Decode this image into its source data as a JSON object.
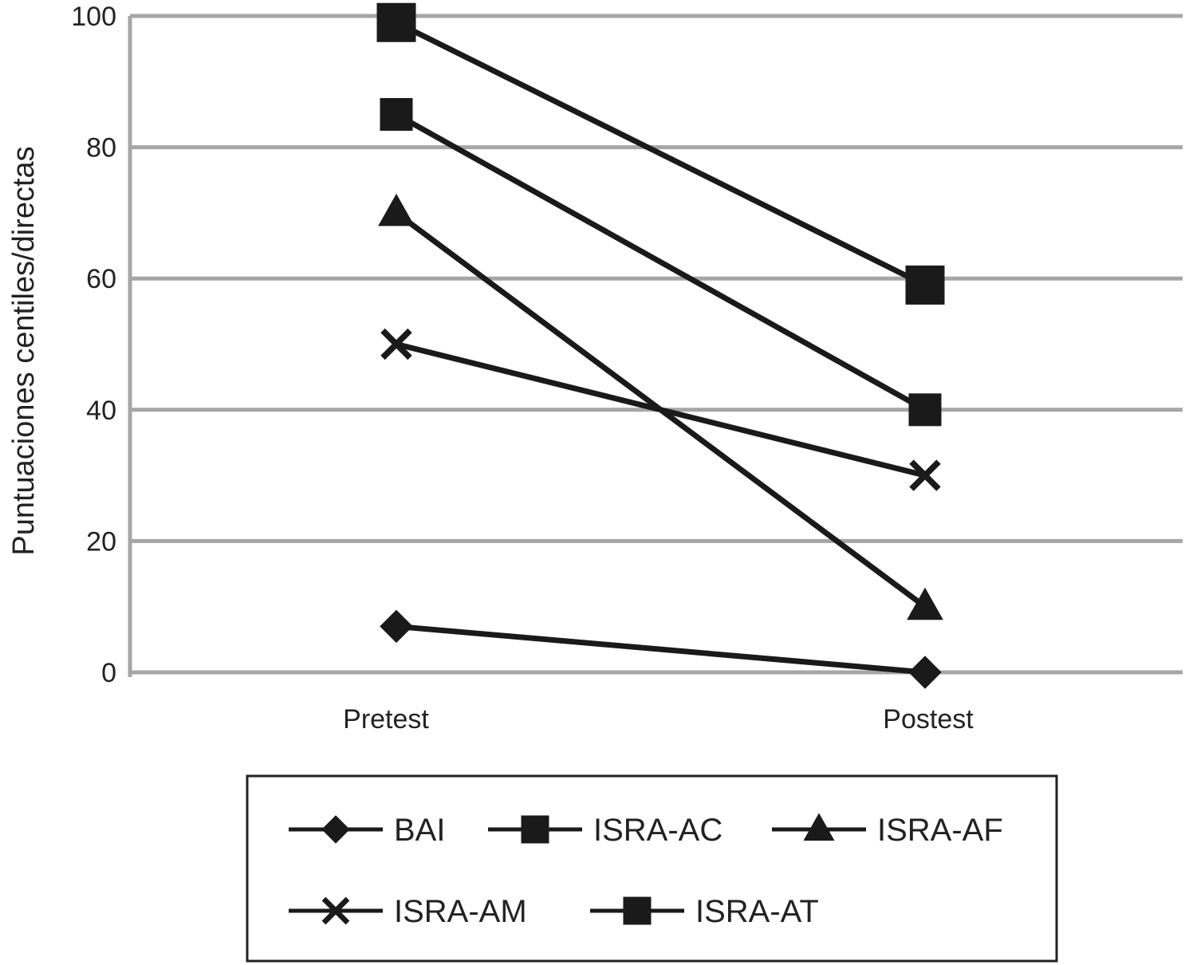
{
  "chart_data": {
    "type": "line",
    "categories": [
      "Pretest",
      "Postest"
    ],
    "ylabel": "Puntuaciones centiles/directas",
    "xlabel": "",
    "ylim": [
      0,
      100
    ],
    "yticks": [
      0,
      20,
      40,
      60,
      80,
      100
    ],
    "grid": true,
    "legend_position": "bottom",
    "series": [
      {
        "name": "BAI",
        "marker": "diamond",
        "values": [
          7,
          0
        ]
      },
      {
        "name": "ISRA-AC",
        "marker": "square",
        "values": [
          85,
          40
        ]
      },
      {
        "name": "ISRA-AF",
        "marker": "triangle",
        "values": [
          70,
          10
        ]
      },
      {
        "name": "ISRA-AM",
        "marker": "x",
        "values": [
          50,
          30
        ]
      },
      {
        "name": "ISRA-AT",
        "marker": "square",
        "values": [
          99,
          59
        ]
      }
    ],
    "colors": {
      "line": "#1a1a1a",
      "grid": "#a6a6a6",
      "text": "#222222"
    }
  }
}
